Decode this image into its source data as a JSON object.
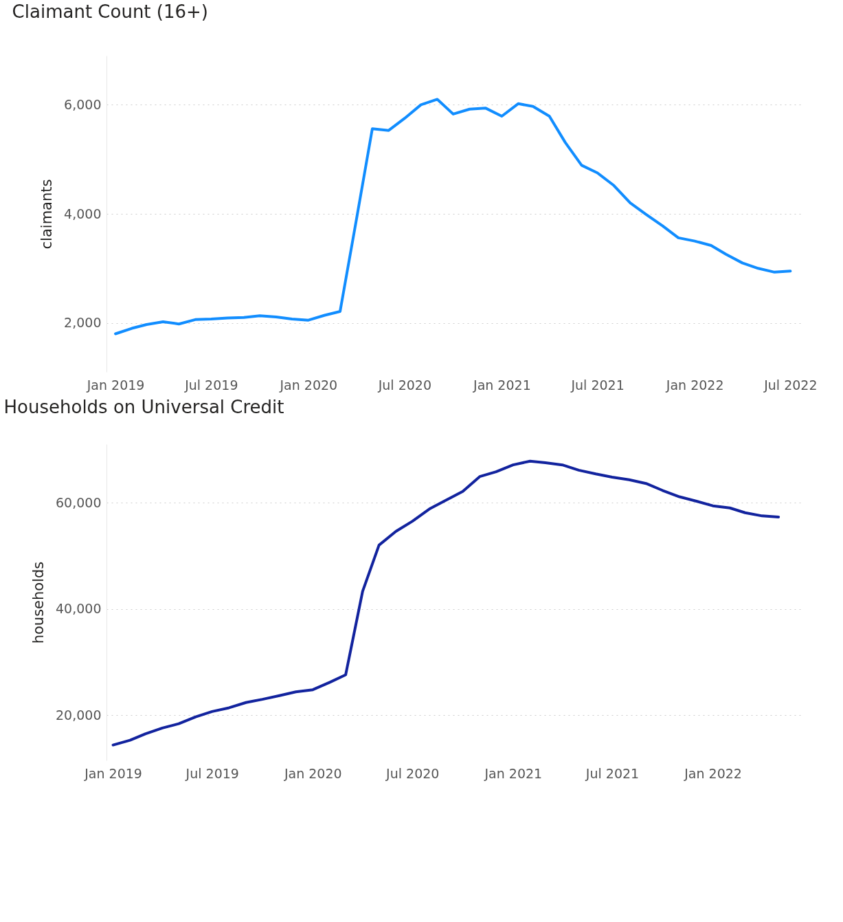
{
  "chart_data": [
    {
      "type": "line",
      "title": "Claimant Count (16+)",
      "ylabel": "claimants",
      "x": [
        "2019-01",
        "2019-02",
        "2019-03",
        "2019-04",
        "2019-05",
        "2019-06",
        "2019-07",
        "2019-08",
        "2019-09",
        "2019-10",
        "2019-11",
        "2019-12",
        "2020-01",
        "2020-02",
        "2020-03",
        "2020-04",
        "2020-05",
        "2020-06",
        "2020-07",
        "2020-08",
        "2020-09",
        "2020-10",
        "2020-11",
        "2020-12",
        "2021-01",
        "2021-02",
        "2021-03",
        "2021-04",
        "2021-05",
        "2021-06",
        "2021-07",
        "2021-08",
        "2021-09",
        "2021-10",
        "2021-11",
        "2021-12",
        "2022-01",
        "2022-02",
        "2022-03",
        "2022-04",
        "2022-05",
        "2022-06",
        "2022-07"
      ],
      "series": [
        {
          "color": "#118dff",
          "values": [
            1800,
            1900,
            1970,
            2020,
            1980,
            2060,
            2070,
            2090,
            2100,
            2130,
            2110,
            2070,
            2050,
            2140,
            2210,
            3900,
            5560,
            5530,
            5750,
            6000,
            6100,
            5830,
            5920,
            5940,
            5790,
            6020,
            5970,
            5790,
            5310,
            4890,
            4750,
            4520,
            4200,
            3990,
            3780,
            3560,
            3500,
            3420,
            3260,
            3100,
            3000,
            2930,
            2950
          ]
        }
      ],
      "xlim": [
        "2018-12-15",
        "2022-07-20"
      ],
      "xticks": [
        {
          "value": "2019-01",
          "label": "Jan 2019"
        },
        {
          "value": "2019-07",
          "label": "Jul 2019"
        },
        {
          "value": "2020-01",
          "label": "Jan 2020"
        },
        {
          "value": "2020-07",
          "label": "Jul 2020"
        },
        {
          "value": "2021-01",
          "label": "Jan 2021"
        },
        {
          "value": "2021-07",
          "label": "Jul 2021"
        },
        {
          "value": "2022-01",
          "label": "Jan 2022"
        },
        {
          "value": "2022-07",
          "label": "Jul 2022"
        }
      ],
      "ylim": [
        1100,
        6900
      ],
      "yticks": [
        {
          "value": 2000,
          "label": "2,000"
        },
        {
          "value": 4000,
          "label": "4,000"
        },
        {
          "value": 6000,
          "label": "6,000"
        }
      ],
      "grid": "y",
      "marker": "none",
      "line_style": "solid"
    },
    {
      "type": "line",
      "title": "Households on Universal Credit",
      "ylabel": "households",
      "x": [
        "2019-01",
        "2019-02",
        "2019-03",
        "2019-04",
        "2019-05",
        "2019-06",
        "2019-07",
        "2019-08",
        "2019-09",
        "2019-10",
        "2019-11",
        "2019-12",
        "2020-01",
        "2020-02",
        "2020-03",
        "2020-04",
        "2020-05",
        "2020-06",
        "2020-07",
        "2020-08",
        "2020-09",
        "2020-10",
        "2020-11",
        "2020-12",
        "2021-01",
        "2021-02",
        "2021-03",
        "2021-04",
        "2021-05",
        "2021-06",
        "2021-07",
        "2021-08",
        "2021-09",
        "2021-10",
        "2021-11",
        "2021-12",
        "2022-01",
        "2022-02",
        "2022-03",
        "2022-04",
        "2022-05"
      ],
      "series": [
        {
          "color": "#12239e",
          "values": [
            14400,
            15300,
            16500,
            17600,
            18400,
            19700,
            20700,
            21400,
            22400,
            23000,
            23700,
            24400,
            24800,
            26200,
            27600,
            43300,
            52000,
            54600,
            56500,
            58800,
            60500,
            62100,
            64900,
            65800,
            67100,
            67800,
            67500,
            67100,
            66100,
            65400,
            64800,
            64300,
            63600,
            62300,
            61100,
            60300,
            59400,
            59000,
            58100,
            57500,
            57300
          ]
        }
      ],
      "xlim": [
        "2018-12-20",
        "2022-06-10"
      ],
      "xticks": [
        {
          "value": "2019-01",
          "label": "Jan 2019"
        },
        {
          "value": "2019-07",
          "label": "Jul 2019"
        },
        {
          "value": "2020-01",
          "label": "Jan 2020"
        },
        {
          "value": "2020-07",
          "label": "Jul 2020"
        },
        {
          "value": "2021-01",
          "label": "Jan 2021"
        },
        {
          "value": "2021-07",
          "label": "Jul 2021"
        },
        {
          "value": "2022-01",
          "label": "Jan 2022"
        }
      ],
      "ylim": [
        11500,
        71000
      ],
      "yticks": [
        {
          "value": 20000,
          "label": "20,000"
        },
        {
          "value": 40000,
          "label": "40,000"
        },
        {
          "value": 60000,
          "label": "60,000"
        }
      ],
      "grid": "y",
      "marker": "none",
      "line_style": "solid"
    }
  ]
}
